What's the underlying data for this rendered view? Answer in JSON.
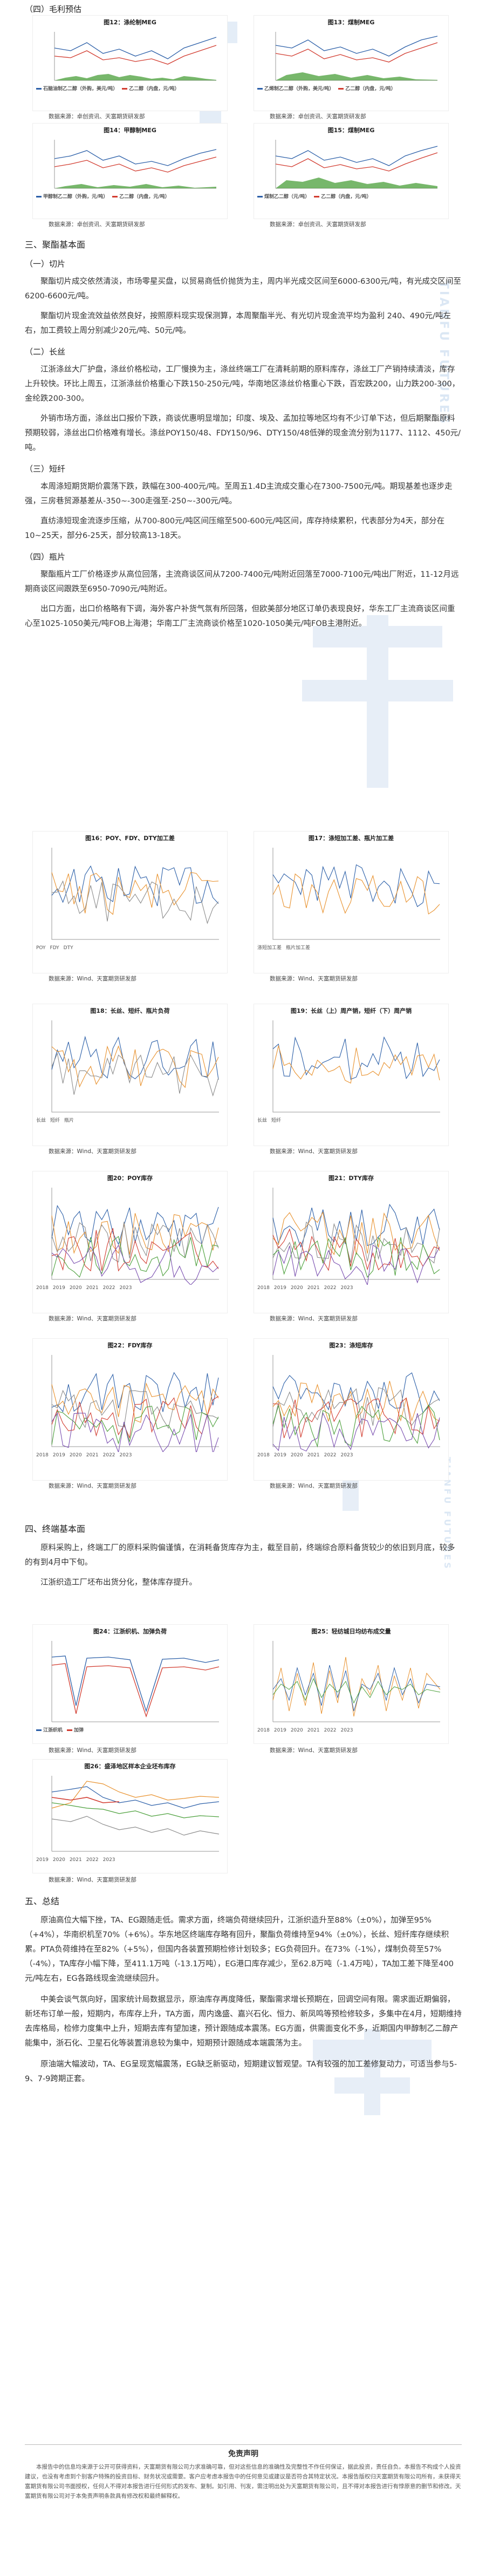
{
  "watermarks": {
    "big1": "T",
    "big2": "天富",
    "big3": "天富期货",
    "brand_en": "TIANFU FUTURES",
    "brand_en2": "TIANFU FUTURES"
  },
  "section4": {
    "heading": "（四）毛利预估",
    "charts": [
      {
        "title": "图12：涤纶制MEG",
        "legend": [
          "石脑油制乙二醇（外购，美元/吨）",
          "乙二醇（内盘，元/吨）"
        ]
      },
      {
        "title": "图13：煤制MEG",
        "legend": [
          "乙烯制乙二醇（外购，美元/吨）",
          "乙二醇（内盘，元/吨）"
        ]
      },
      {
        "title": "图14：甲醇制MEG",
        "legend": [
          "甲醇制乙二醇（外购，元/吨）",
          "乙二醇（内盘，元/吨）"
        ]
      },
      {
        "title": "图15：煤制MEG",
        "legend": [
          "煤制乙二醇（元/吨）",
          "乙二醇（内盘，元/吨）"
        ]
      }
    ],
    "source": "数据来源：卓创资讯、天富期货研发部"
  },
  "section3": {
    "heading": "三、聚酯基本面",
    "sub1": "（一）切片",
    "p1": "聚酯切片成交依然清淡，市场零星买盘，以贸易商低价抛货为主，周内半光成交区间至6000-6300元/吨，有光成交区间至6200-6600元/吨。",
    "p2": "聚酯切片现金流效益依然良好，按照原料现实现保测算，本周聚酯半光、有光切片现金流平均为盈利 240、490元/吨左右，加工费较上周分别减少20元/吨、50元/吨。",
    "sub2": "（二）长丝",
    "p3": "江浙涤丝大厂护盘，涤丝价格松动，工厂慢换为主，涤丝终端工厂在清耗前期的原料库存，涤丝工厂产销持续清淡，库存上升较快。环比上周五，江浙涤丝价格重心下跌150-250元/吨，华南地区涤丝价格重心下跌，百宏跌200，山力跌200-300，金纶跌200-300。",
    "p4": "外销市场方面，涤丝出口报价下跌，商谈优惠明显增加；印度、埃及、孟加拉等地区均有不少订单下达，但后期聚酯原料预期较弱，涤丝出口价格难有增长。涤丝POY150/48、FDY150/96、DTY150/48低弹的现金流分别为1177、1112、450元/吨。",
    "sub3": "（三）短纤",
    "p5": "本周涤短期货期价震荡下跌，跌幅在300-400元/吨。至周五1.4D主流成交重心在7300-7500元/吨。期现基差也逐步走强，三房巷贸源基差从-350~-300走强至-250~-300元/吨。",
    "p6": "直纺涤短现金流逐步压缩，从700-800元/吨区间压缩至500-600元/吨区间，库存持续累积，代表部分为4天，部分在10~25天，部分6-25天，部分较高13-18天。",
    "sub4": "（四）瓶片",
    "p7": "聚酯瓶片工厂价格逐步从高位回落，主流商谈区间从7200-7400元/吨附近回落至7000-7100元/吨出厂附近，11-12月远期商谈区间跟跌至6950-7090元/吨附近。",
    "p8": "出口方面，出口价格略有下调，海外客户补货气氛有所回落，但欧美部分地区订单仍表现良好，华东工厂主流商谈区间重心至1025-1050美元/吨FOB上海港；华南工厂主流商谈价格至1020-1050美元/吨FOB主港附近。",
    "charts": [
      {
        "title": "图16：POY、FDY、DTY加工差",
        "legend": [
          "POY",
          "FDY",
          "DTY"
        ]
      },
      {
        "title": "图17：涤短加工差、瓶片加工差",
        "legend": [
          "涤短加工差",
          "瓶片加工差"
        ]
      },
      {
        "title": "图18：长丝、短纤、瓶片负荷",
        "legend": [
          "长丝",
          "短纤",
          "瓶片"
        ]
      },
      {
        "title": "图19：长丝（上）周产销，短纤（下）周产销",
        "legend": [
          "长丝",
          "短纤"
        ]
      },
      {
        "title": "图20：POY库存",
        "legend": [
          "2018",
          "2019",
          "2020",
          "2021",
          "2022",
          "2023"
        ]
      },
      {
        "title": "图21：DTY库存",
        "legend": [
          "2018",
          "2019",
          "2020",
          "2021",
          "2022",
          "2023"
        ]
      },
      {
        "title": "图22：FDY库存",
        "legend": [
          "2018",
          "2019",
          "2020",
          "2021",
          "2022",
          "2023"
        ]
      },
      {
        "title": "图23：涤短库存",
        "legend": [
          "2018",
          "2019",
          "2020",
          "2021",
          "2022",
          "2023"
        ]
      }
    ],
    "source": "数据来源：Wind、天富期货研发部"
  },
  "section4b": {
    "heading": "四、终端基本面",
    "p1": "原料采购上，终端工厂的原料采购偏谨慎，在消耗备货库存为主，截至目前，终端综合原料备货较少的依旧到月底，较多的有到4月中下旬。",
    "p2": "江浙织造工厂坯布出货分化，整体库存提升。",
    "charts": [
      {
        "title": "图24：江浙织机、加弹负荷",
        "legend": [
          "江浙织机",
          "加弹"
        ]
      },
      {
        "title": "图25：轻纺城日均纺布成交量",
        "legend": [
          "2018",
          "2019",
          "2020",
          "2021",
          "2022",
          "2023"
        ]
      },
      {
        "title": "图26：盛泽地区样本企业坯布库存",
        "legend": [
          "2019",
          "2020",
          "2021",
          "2022",
          "2023"
        ]
      }
    ],
    "source": "数据来源：Wind、天富期货研发部"
  },
  "section5": {
    "heading": "五、总结",
    "p1": "原油高位大幅下挫，TA、EG跟随走低。需求方面，终端负荷继续回升，江浙织造升至88%（±0%），加弹至95%（+4%），华南织机至70%（+6%）。华东地区终端库存略有回升，聚酯负荷维持至94%（±0%），长丝、短纤库存继续积累。PTA负荷维持在至82%（+5%），但国内各装置预期检修计划较多；EG负荷回升。在73%（-1%），煤制负荷至57%（-4%），TA库存小幅下降，至411.1万吨（-13.1万吨），EG港口库存减少，至62.8万吨（-1.4万吨），TA加工差下降至400元/吨左右，EG各路线现金流继续回升。",
    "p2": "中美会谈气氛向好，国家统计局数据显示，原油库存再度降低，聚酯需求增长预期在，回调空间有限。需求面近期偏弱，新坯布订单一般，短期内，布库存上升，TA方面，周内逸盛、嘉兴石化、恒力、新凤鸣等预检修较多，多集中在4月，短期维持去库格局，检修力度集中上升，短期去库有望加速，预计跟随成本震荡。EG方面，供需面变化不多，近期国内甲醇制乙二醇产能集中，浙石化、卫星石化等装置消息较为集中，短期预计跟随成本端震荡为主。",
    "p3": "原油端大幅波动，TA、EG呈现宽幅震荡，EG缺乏新驱动，短期建议暂观望。TA有较强的加工差修复动力，可适当参与5-9、7-9跨期正套。"
  },
  "disclaimer": {
    "title": "免责声明",
    "text": "本报告中的信息均来源于公开可获得资料，天富期货有限公司力求准确可靠，但对这些信息的准确性及完整性不作任何保证，据此投资，责任自负。本报告不构成个人投资建议，也没有考虑到个别客户特殊的投资目标、财务状况或需要。客户应考虑本报告中的任何意见或建议是否符合其特定状况。本报告版权归天富期货有限公司所有，未获得天富期货有限公司书面授权，任何人不得对本报告进行任何形式的发布、复制。如引用、刊发，需注明出处为天富期货有限公司，且不得对本报告进行有悖原意的删节和修改。天富期货有限公司对于本免责声明条款具有修改权和最终解释权。"
  },
  "colors": {
    "accent": "#2b5fa8",
    "green": "#4a9f3a",
    "red": "#d23b2f",
    "orange": "#e8912d",
    "grey": "#8c8c8c",
    "watermark": "#dbe7f4"
  }
}
